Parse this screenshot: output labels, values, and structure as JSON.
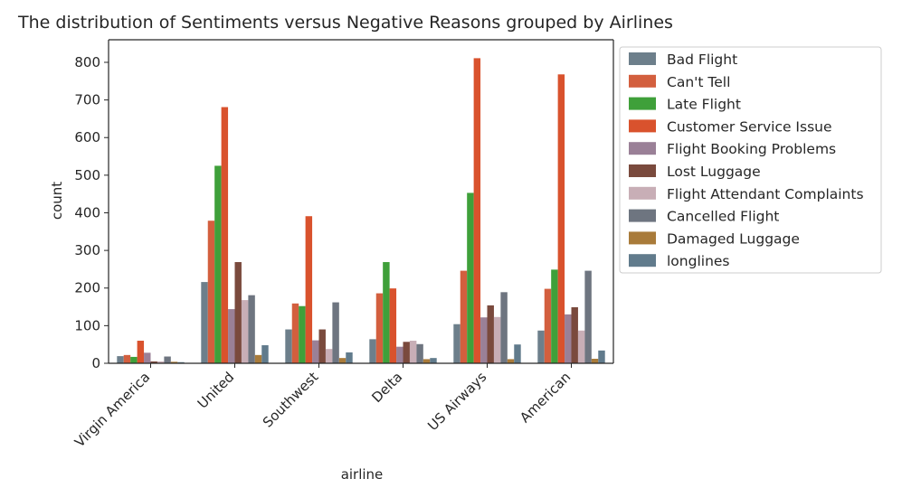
{
  "chart_data": {
    "type": "bar",
    "title": "The distribution of Sentiments versus Negative Reasons grouped by Airlines",
    "xlabel": "airline",
    "ylabel": "count",
    "ylim": [
      0,
      860
    ],
    "yticks": [
      0,
      100,
      200,
      300,
      400,
      500,
      600,
      700,
      800
    ],
    "categories": [
      "Virgin America",
      "United",
      "Southwest",
      "Delta",
      "US Airways",
      "American"
    ],
    "legend_position": "outside-right",
    "grid": false,
    "series": [
      {
        "name": "Bad Flight",
        "color": "#6d7f8b",
        "values": [
          19,
          216,
          90,
          64,
          104,
          87
        ]
      },
      {
        "name": "Can't Tell",
        "color": "#d35f3e",
        "values": [
          22,
          379,
          159,
          186,
          246,
          198
        ]
      },
      {
        "name": "Late Flight",
        "color": "#3fa03a",
        "values": [
          17,
          525,
          152,
          269,
          453,
          249
        ]
      },
      {
        "name": "Customer Service Issue",
        "color": "#d9522d",
        "values": [
          60,
          681,
          391,
          199,
          811,
          768
        ]
      },
      {
        "name": "Flight Booking Problems",
        "color": "#9a8097",
        "values": [
          28,
          144,
          61,
          44,
          122,
          130
        ]
      },
      {
        "name": "Lost Luggage",
        "color": "#7a4a3d",
        "values": [
          5,
          269,
          90,
          57,
          154,
          149
        ]
      },
      {
        "name": "Flight Attendant Complaints",
        "color": "#c8aeb6",
        "values": [
          5,
          168,
          38,
          60,
          123,
          87
        ]
      },
      {
        "name": "Cancelled Flight",
        "color": "#6e7580",
        "values": [
          18,
          181,
          162,
          51,
          189,
          246
        ]
      },
      {
        "name": "Damaged Luggage",
        "color": "#a97b3a",
        "values": [
          4,
          22,
          14,
          11,
          11,
          12
        ]
      },
      {
        "name": "longlines",
        "color": "#617b8c",
        "values": [
          3,
          48,
          29,
          14,
          50,
          34
        ]
      }
    ]
  }
}
